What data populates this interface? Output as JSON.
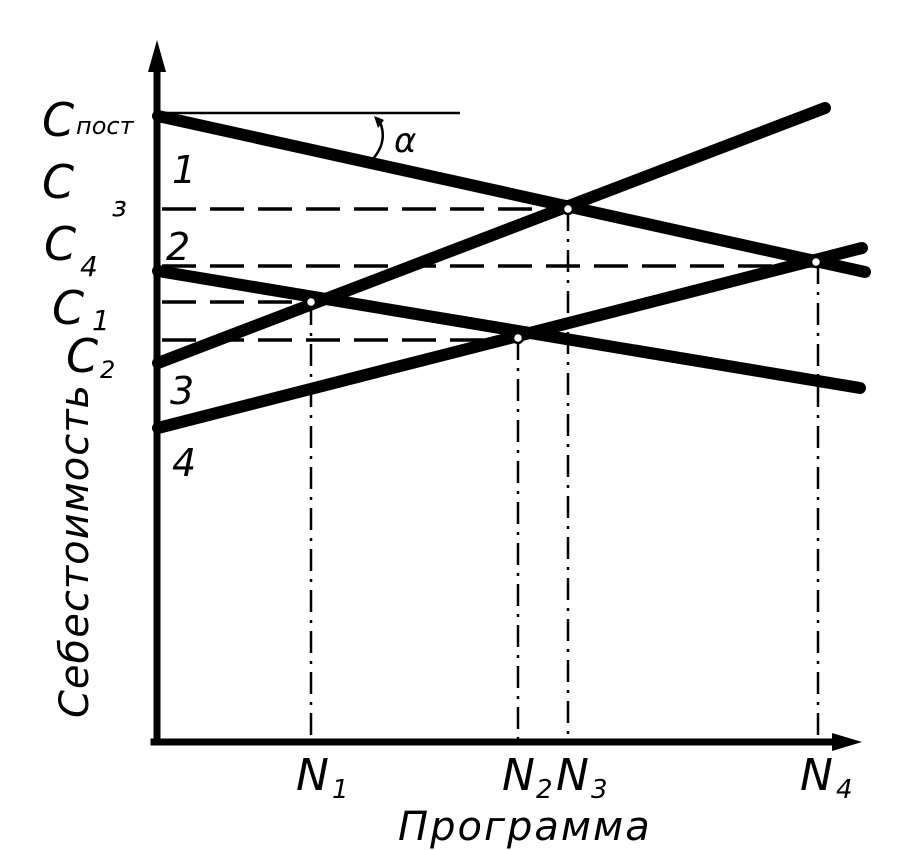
{
  "diagram": {
    "y_axis_label": "Себестоимость",
    "x_axis_label": "Программа",
    "y_labels": {
      "c_post": "С",
      "c_post_sub": "пост",
      "c3": "С",
      "c3_sub": "з",
      "c4": "С",
      "c4_sub": "4",
      "c1": "С",
      "c1_sub": "1",
      "c2": "С",
      "c2_sub": "2"
    },
    "x_labels": {
      "n1": "N",
      "n1_sub": "1",
      "n2": "N",
      "n2_sub": "2",
      "n3": "N",
      "n3_sub": "3",
      "n4": "N",
      "n4_sub": "4"
    },
    "line_numbers": [
      "1",
      "2",
      "3",
      "4"
    ],
    "angle_label": "α"
  }
}
